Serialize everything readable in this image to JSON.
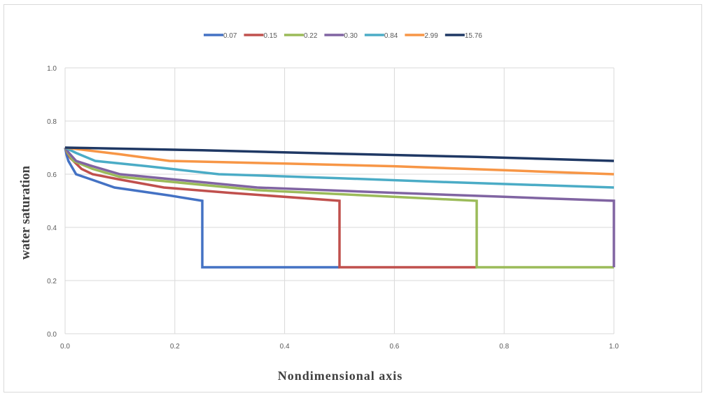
{
  "chart_data": {
    "type": "line",
    "xlabel": "Nondimensional axis",
    "ylabel": "water saturation",
    "xlim": [
      0,
      1
    ],
    "ylim": [
      0,
      1
    ],
    "x_ticks": [
      "0.0",
      "0.2",
      "0.4",
      "0.6",
      "0.8",
      "1.0"
    ],
    "y_ticks": [
      "0.0",
      "0.2",
      "0.4",
      "0.6",
      "0.8",
      "1.0"
    ],
    "grid": true,
    "legend_position": "top",
    "series": [
      {
        "name": "0.07",
        "color": "#4472c4",
        "points": [
          [
            0,
            0.7
          ],
          [
            0.003,
            0.67
          ],
          [
            0.006,
            0.65
          ],
          [
            0.02,
            0.6
          ],
          [
            0.09,
            0.55
          ],
          [
            0.19,
            0.52
          ],
          [
            0.25,
            0.5
          ],
          [
            0.25,
            0.25
          ],
          [
            0.5,
            0.25
          ]
        ]
      },
      {
        "name": "0.15",
        "color": "#c0504d",
        "points": [
          [
            0,
            0.7
          ],
          [
            0.004,
            0.68
          ],
          [
            0.01,
            0.66
          ],
          [
            0.03,
            0.62
          ],
          [
            0.05,
            0.6
          ],
          [
            0.1,
            0.58
          ],
          [
            0.18,
            0.55
          ],
          [
            0.3,
            0.53
          ],
          [
            0.5,
            0.5
          ],
          [
            0.5,
            0.25
          ],
          [
            0.75,
            0.25
          ]
        ]
      },
      {
        "name": "0.22",
        "color": "#9bbb59",
        "points": [
          [
            0,
            0.7
          ],
          [
            0.005,
            0.68
          ],
          [
            0.015,
            0.65
          ],
          [
            0.05,
            0.62
          ],
          [
            0.1,
            0.59
          ],
          [
            0.2,
            0.57
          ],
          [
            0.35,
            0.54
          ],
          [
            0.55,
            0.52
          ],
          [
            0.75,
            0.5
          ],
          [
            0.75,
            0.25
          ],
          [
            1.0,
            0.25
          ]
        ]
      },
      {
        "name": "0.30",
        "color": "#8064a2",
        "points": [
          [
            0,
            0.7
          ],
          [
            0.007,
            0.68
          ],
          [
            0.02,
            0.65
          ],
          [
            0.05,
            0.63
          ],
          [
            0.1,
            0.6
          ],
          [
            0.2,
            0.58
          ],
          [
            0.35,
            0.55
          ],
          [
            0.6,
            0.53
          ],
          [
            0.8,
            0.515
          ],
          [
            1.0,
            0.5
          ],
          [
            1.0,
            0.25
          ]
        ]
      },
      {
        "name": "0.84",
        "color": "#4bacc6",
        "points": [
          [
            0,
            0.7
          ],
          [
            0.02,
            0.68
          ],
          [
            0.055,
            0.65
          ],
          [
            0.15,
            0.63
          ],
          [
            0.28,
            0.6
          ],
          [
            0.5,
            0.585
          ],
          [
            0.7,
            0.57
          ],
          [
            1.0,
            0.55
          ]
        ]
      },
      {
        "name": "2.99",
        "color": "#f79646",
        "points": [
          [
            0,
            0.7
          ],
          [
            0.1,
            0.675
          ],
          [
            0.19,
            0.65
          ],
          [
            0.4,
            0.64
          ],
          [
            0.6,
            0.63
          ],
          [
            0.8,
            0.615
          ],
          [
            1.0,
            0.6
          ]
        ]
      },
      {
        "name": "15.76",
        "color": "#1f3864",
        "points": [
          [
            0,
            0.7
          ],
          [
            0.25,
            0.69
          ],
          [
            0.5,
            0.677
          ],
          [
            0.75,
            0.665
          ],
          [
            1.0,
            0.65
          ]
        ]
      }
    ]
  }
}
